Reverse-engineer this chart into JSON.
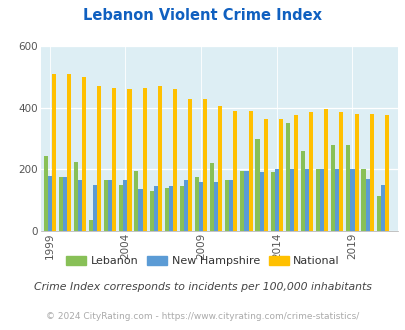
{
  "title": "Lebanon Violent Crime Index",
  "years": [
    1999,
    2000,
    2001,
    2002,
    2003,
    2004,
    2005,
    2006,
    2007,
    2008,
    2009,
    2010,
    2011,
    2012,
    2013,
    2014,
    2015,
    2016,
    2017,
    2018,
    2019,
    2020,
    2021
  ],
  "lebanon": [
    245,
    175,
    225,
    35,
    165,
    150,
    195,
    130,
    140,
    145,
    175,
    220,
    165,
    195,
    300,
    190,
    350,
    260,
    200,
    280,
    280,
    200,
    115
  ],
  "new_hampshire": [
    180,
    175,
    165,
    150,
    165,
    165,
    135,
    145,
    145,
    165,
    160,
    160,
    165,
    195,
    190,
    200,
    200,
    200,
    200,
    200,
    200,
    170,
    150
  ],
  "national": [
    510,
    510,
    500,
    470,
    465,
    460,
    465,
    470,
    460,
    430,
    430,
    405,
    390,
    390,
    365,
    365,
    375,
    385,
    395,
    385,
    380,
    380,
    375
  ],
  "lebanon_color": "#88c057",
  "nh_color": "#5b9bd5",
  "national_color": "#ffc000",
  "bg_color": "#ddeef4",
  "ylim": [
    0,
    600
  ],
  "yticks": [
    0,
    200,
    400,
    600
  ],
  "xtick_years": [
    1999,
    2004,
    2009,
    2014,
    2019
  ],
  "bar_width": 0.27,
  "footnote": "Crime Index corresponds to incidents per 100,000 inhabitants",
  "copyright": "© 2024 CityRating.com - https://www.cityrating.com/crime-statistics/"
}
